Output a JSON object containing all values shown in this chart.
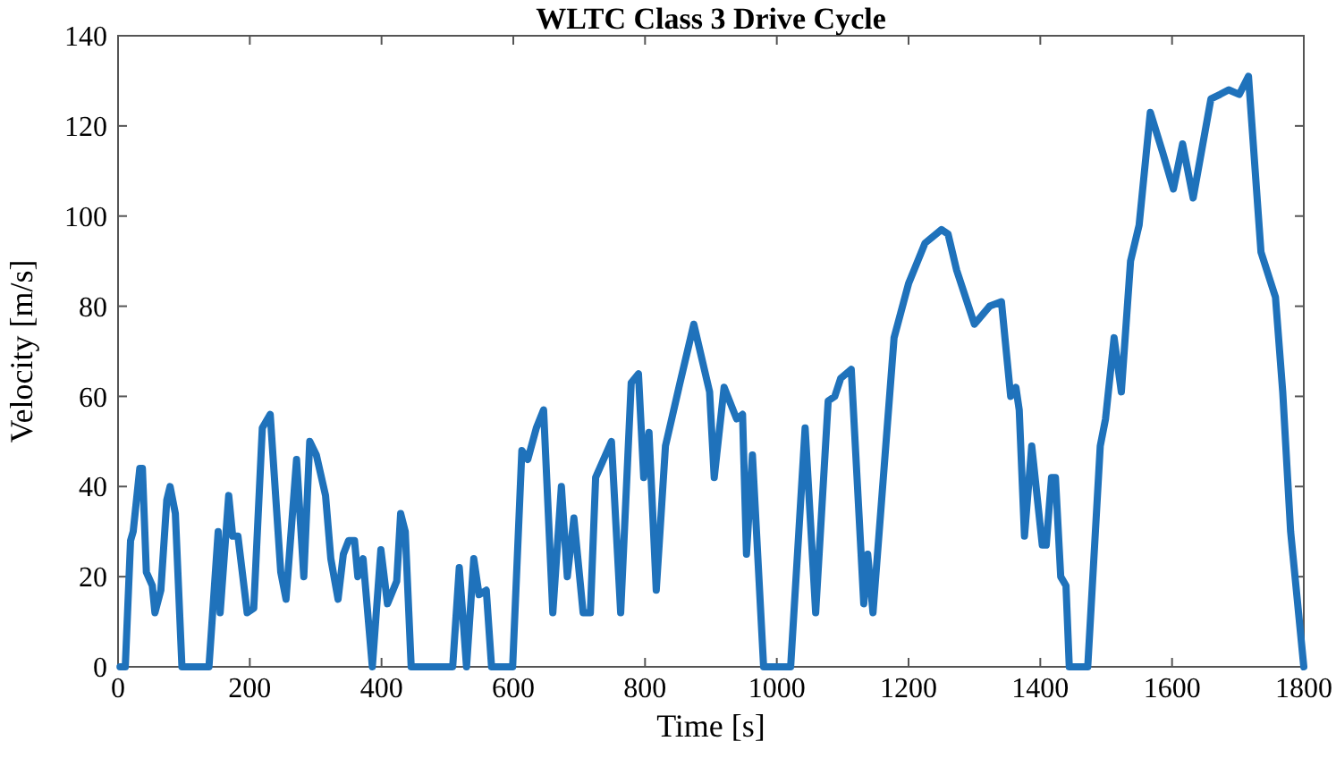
{
  "chart_data": {
    "type": "line",
    "title": "WLTC Class 3 Drive Cycle",
    "xlabel": "Time [s]",
    "ylabel": "Velocity [m/s]",
    "xlim": [
      0,
      1800
    ],
    "ylim": [
      0,
      140
    ],
    "xticks": [
      0,
      200,
      400,
      600,
      800,
      1000,
      1200,
      1400,
      1600,
      1800
    ],
    "yticks": [
      0,
      20,
      40,
      60,
      80,
      100,
      120,
      140
    ],
    "grid": false,
    "marker": "none",
    "line_style": "solid",
    "series": [
      {
        "color": "#1f72bb",
        "x": [
          3,
          11,
          19,
          23,
          33,
          37,
          43,
          52,
          56,
          65,
          74,
          79,
          87,
          97,
          138,
          152,
          155,
          168,
          174,
          182,
          196,
          206,
          219,
          231,
          247,
          255,
          271,
          282,
          291,
          301,
          315,
          323,
          334,
          342,
          350,
          359,
          364,
          372,
          386,
          399,
          409,
          423,
          429,
          436,
          445,
          508,
          518,
          529,
          540,
          548,
          559,
          567,
          599,
          613,
          622,
          635,
          646,
          660,
          673,
          682,
          692,
          706,
          717,
          725,
          749,
          763,
          779,
          790,
          798,
          806,
          817,
          831,
          853,
          874,
          898,
          905,
          920,
          939,
          948,
          954,
          963,
          980,
          1021,
          1043,
          1059,
          1078,
          1088,
          1097,
          1113,
          1132,
          1138,
          1146,
          1178,
          1200,
          1225,
          1250,
          1260,
          1273,
          1300,
          1323,
          1341,
          1355,
          1363,
          1368,
          1376,
          1387,
          1403,
          1409,
          1417,
          1423,
          1431,
          1439,
          1444,
          1472,
          1491,
          1499,
          1512,
          1523,
          1537,
          1550,
          1567,
          1586,
          1602,
          1616,
          1632,
          1659,
          1673,
          1686,
          1702,
          1716,
          1735,
          1757,
          1768,
          1780,
          1800
        ],
        "values": [
          0,
          0,
          28,
          30,
          44,
          44,
          21,
          18,
          12,
          17,
          37,
          40,
          34,
          0,
          0,
          30,
          12,
          38,
          29,
          29,
          12,
          13,
          53,
          56,
          21,
          15,
          46,
          20,
          50,
          47,
          38,
          24,
          15,
          25,
          28,
          28,
          20,
          24,
          0,
          26,
          14,
          19,
          34,
          30,
          0,
          0,
          22,
          0,
          24,
          16,
          17,
          0,
          0,
          48,
          46,
          53,
          57,
          12,
          40,
          20,
          33,
          12,
          12,
          42,
          50,
          12,
          63,
          65,
          42,
          52,
          17,
          49,
          63,
          76,
          61,
          42,
          62,
          55,
          56,
          25,
          47,
          0,
          0,
          53,
          12,
          59,
          60,
          64,
          66,
          14,
          25,
          12,
          73,
          85,
          94,
          97,
          96,
          88,
          76,
          80,
          81,
          60,
          62,
          57,
          29,
          49,
          27,
          27,
          42,
          42,
          20,
          18,
          0,
          0,
          49,
          55,
          73,
          61,
          90,
          98,
          123,
          114,
          106,
          116,
          104,
          126,
          127,
          128,
          127,
          131,
          92,
          82,
          61,
          30,
          0
        ]
      }
    ]
  }
}
